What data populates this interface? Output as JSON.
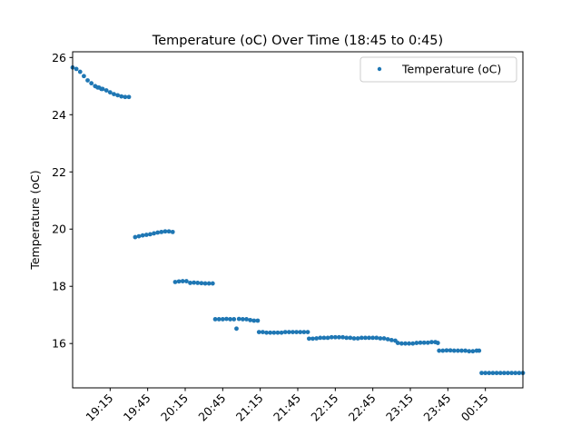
{
  "chart_data": {
    "type": "scatter",
    "title": "Temperature (oC) Over Time (18:45 to 0:45)",
    "xlabel": "",
    "ylabel": "Temperature (oC)",
    "x_start": "18:45",
    "x_end": "00:45",
    "xlim": [
      "18:45",
      "00:45"
    ],
    "ylim": [
      14.45,
      26.2
    ],
    "xticks": [
      "19:15",
      "19:45",
      "20:15",
      "20:45",
      "21:15",
      "21:45",
      "22:15",
      "22:45",
      "23:15",
      "23:45",
      "00:15"
    ],
    "yticks": [
      16,
      18,
      20,
      22,
      24,
      26
    ],
    "legend": {
      "position": "top-right",
      "entries": [
        "Temperature (oC)"
      ]
    },
    "grid": false,
    "marker_color": "#1f77b4",
    "series": [
      {
        "name": "Temperature (oC)",
        "points": [
          [
            "18:45",
            25.65
          ],
          [
            "18:48",
            25.6
          ],
          [
            "18:51",
            25.5
          ],
          [
            "18:54",
            25.35
          ],
          [
            "18:57",
            25.2
          ],
          [
            "19:00",
            25.1
          ],
          [
            "19:03",
            25.0
          ],
          [
            "19:06",
            24.95
          ],
          [
            "19:09",
            24.9
          ],
          [
            "19:12",
            24.85
          ],
          [
            "19:15",
            24.78
          ],
          [
            "19:18",
            24.72
          ],
          [
            "19:21",
            24.68
          ],
          [
            "19:24",
            24.64
          ],
          [
            "19:27",
            24.62
          ],
          [
            "19:30",
            24.62
          ],
          [
            "19:05",
            24.95
          ],
          [
            "19:08",
            24.9
          ],
          [
            "19:35",
            19.72
          ],
          [
            "19:38",
            19.75
          ],
          [
            "19:41",
            19.78
          ],
          [
            "19:44",
            19.8
          ],
          [
            "19:47",
            19.82
          ],
          [
            "19:50",
            19.85
          ],
          [
            "19:53",
            19.88
          ],
          [
            "19:56",
            19.9
          ],
          [
            "19:59",
            19.92
          ],
          [
            "20:02",
            19.92
          ],
          [
            "20:05",
            19.9
          ],
          [
            "20:07",
            18.15
          ],
          [
            "20:10",
            18.17
          ],
          [
            "20:13",
            18.18
          ],
          [
            "20:16",
            18.18
          ],
          [
            "20:19",
            18.12
          ],
          [
            "20:22",
            18.13
          ],
          [
            "20:25",
            18.12
          ],
          [
            "20:28",
            18.11
          ],
          [
            "20:31",
            18.1
          ],
          [
            "20:34",
            18.1
          ],
          [
            "20:37",
            18.1
          ],
          [
            "20:39",
            16.85
          ],
          [
            "20:42",
            16.85
          ],
          [
            "20:45",
            16.85
          ],
          [
            "20:48",
            16.86
          ],
          [
            "20:51",
            16.85
          ],
          [
            "20:54",
            16.85
          ],
          [
            "20:56",
            16.52
          ],
          [
            "20:58",
            16.86
          ],
          [
            "21:01",
            16.85
          ],
          [
            "21:04",
            16.85
          ],
          [
            "21:07",
            16.82
          ],
          [
            "21:10",
            16.8
          ],
          [
            "21:13",
            16.8
          ],
          [
            "21:14",
            16.4
          ],
          [
            "21:17",
            16.4
          ],
          [
            "21:20",
            16.38
          ],
          [
            "21:23",
            16.38
          ],
          [
            "21:26",
            16.38
          ],
          [
            "21:29",
            16.38
          ],
          [
            "21:32",
            16.38
          ],
          [
            "21:35",
            16.4
          ],
          [
            "21:38",
            16.4
          ],
          [
            "21:41",
            16.4
          ],
          [
            "21:44",
            16.4
          ],
          [
            "21:47",
            16.4
          ],
          [
            "21:50",
            16.4
          ],
          [
            "21:53",
            16.4
          ],
          [
            "21:54",
            16.17
          ],
          [
            "21:57",
            16.17
          ],
          [
            "22:00",
            16.18
          ],
          [
            "22:03",
            16.2
          ],
          [
            "22:06",
            16.2
          ],
          [
            "22:09",
            16.2
          ],
          [
            "22:12",
            16.22
          ],
          [
            "22:15",
            16.22
          ],
          [
            "22:18",
            16.22
          ],
          [
            "22:21",
            16.22
          ],
          [
            "22:24",
            16.2
          ],
          [
            "22:27",
            16.2
          ],
          [
            "22:30",
            16.18
          ],
          [
            "22:33",
            16.18
          ],
          [
            "22:36",
            16.2
          ],
          [
            "22:39",
            16.2
          ],
          [
            "22:42",
            16.2
          ],
          [
            "22:45",
            16.2
          ],
          [
            "22:48",
            16.2
          ],
          [
            "22:51",
            16.18
          ],
          [
            "22:54",
            16.18
          ],
          [
            "22:57",
            16.15
          ],
          [
            "23:00",
            16.12
          ],
          [
            "23:03",
            16.1
          ],
          [
            "23:05",
            16.02
          ],
          [
            "23:08",
            16.0
          ],
          [
            "23:11",
            16.0
          ],
          [
            "23:14",
            16.0
          ],
          [
            "23:17",
            16.0
          ],
          [
            "23:20",
            16.02
          ],
          [
            "23:23",
            16.03
          ],
          [
            "23:26",
            16.03
          ],
          [
            "23:29",
            16.03
          ],
          [
            "23:32",
            16.05
          ],
          [
            "23:35",
            16.05
          ],
          [
            "23:37",
            16.02
          ],
          [
            "23:38",
            15.75
          ],
          [
            "23:41",
            15.75
          ],
          [
            "23:44",
            15.76
          ],
          [
            "23:47",
            15.76
          ],
          [
            "23:50",
            15.75
          ],
          [
            "23:53",
            15.75
          ],
          [
            "23:56",
            15.75
          ],
          [
            "23:59",
            15.75
          ],
          [
            "00:02",
            15.73
          ],
          [
            "00:05",
            15.73
          ],
          [
            "00:08",
            15.75
          ],
          [
            "00:10",
            15.75
          ],
          [
            "00:12",
            14.97
          ],
          [
            "00:15",
            14.97
          ],
          [
            "00:18",
            14.97
          ],
          [
            "00:21",
            14.97
          ],
          [
            "00:24",
            14.97
          ],
          [
            "00:27",
            14.97
          ],
          [
            "00:30",
            14.97
          ],
          [
            "00:33",
            14.97
          ],
          [
            "00:36",
            14.97
          ],
          [
            "00:39",
            14.97
          ],
          [
            "00:42",
            14.97
          ],
          [
            "00:45",
            14.97
          ]
        ]
      }
    ]
  }
}
